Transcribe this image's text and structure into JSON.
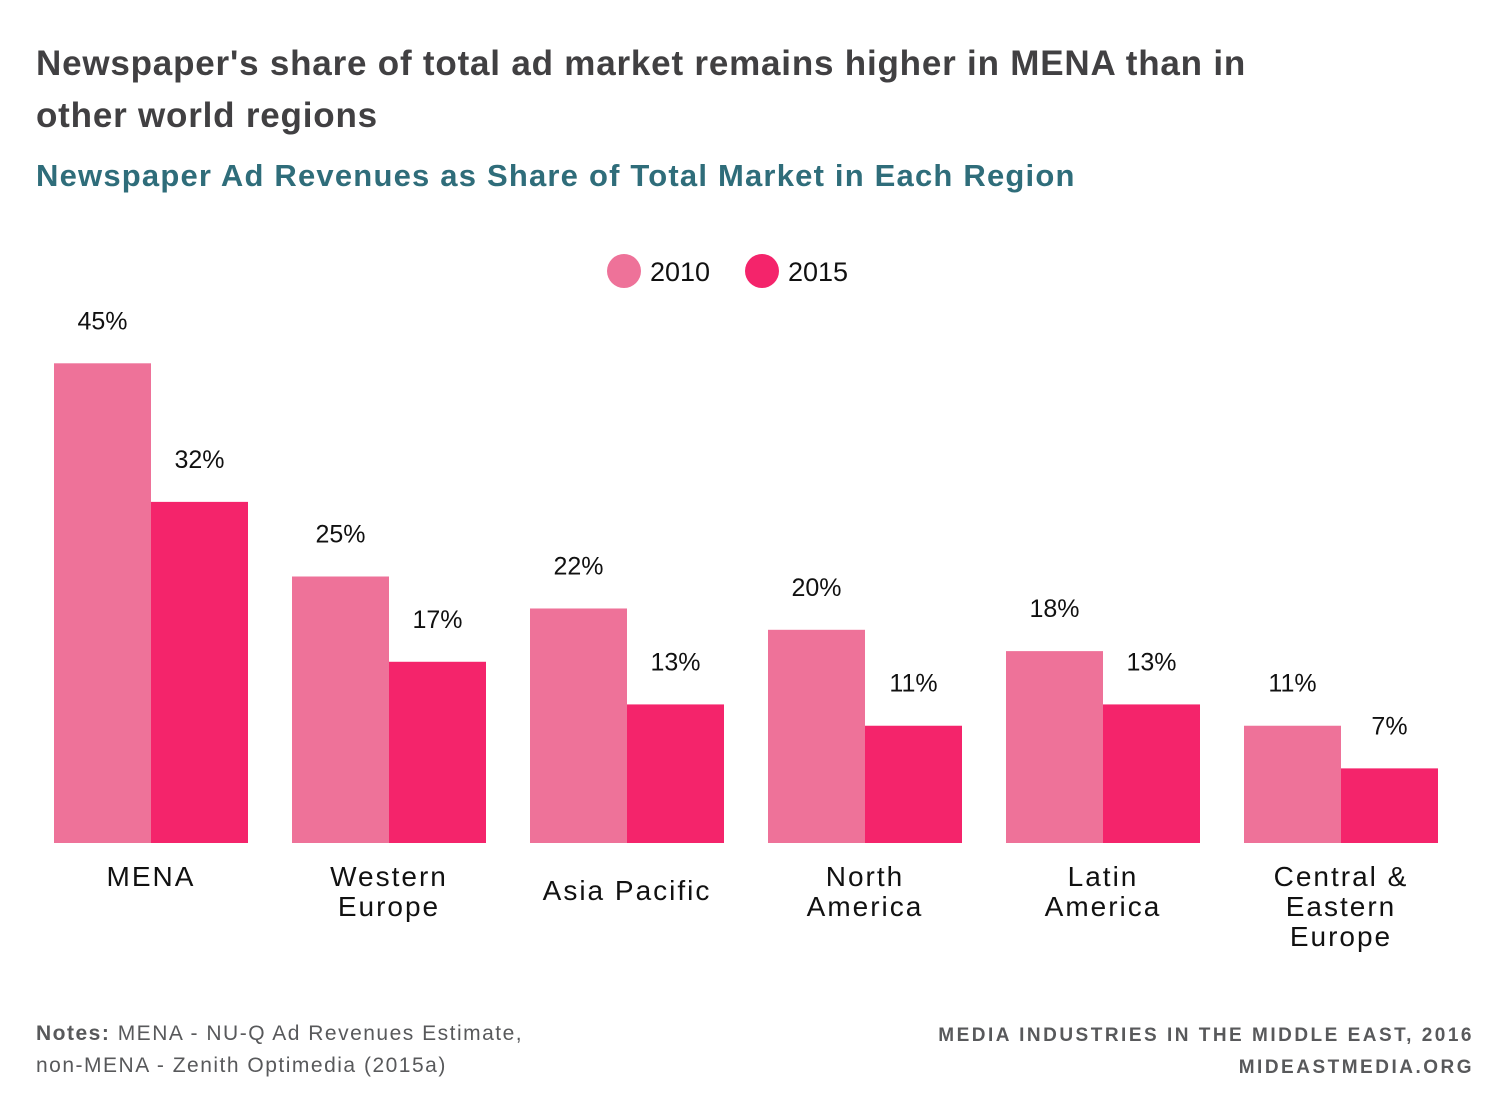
{
  "title": "Newspaper's share of total ad market remains higher in MENA than in other world regions",
  "subtitle": "Newspaper Ad Revenues as Share of Total Market in Each Region",
  "colors": {
    "2010": "#ee7299",
    "2015": "#f4246b",
    "title": "#414042",
    "subtitle": "#2f6d7a"
  },
  "chart_data": {
    "type": "bar",
    "categories": [
      "MENA",
      "Western Europe",
      "Asia Pacific",
      "North America",
      "Latin America",
      "Central & Eastern Europe"
    ],
    "category_lines": [
      [
        "MENA"
      ],
      [
        "Western",
        "Europe"
      ],
      [
        "Asia Pacific"
      ],
      [
        "North",
        "America"
      ],
      [
        "Latin",
        "America"
      ],
      [
        "Central &",
        "Eastern",
        "Europe"
      ]
    ],
    "series": [
      {
        "name": "2010",
        "values": [
          45,
          25,
          22,
          20,
          18,
          11
        ],
        "labels": [
          "45%",
          "25%",
          "22%",
          "20%",
          "18%",
          "11%"
        ]
      },
      {
        "name": "2015",
        "values": [
          32,
          17,
          13,
          11,
          13,
          7
        ],
        "labels": [
          "32%",
          "17%",
          "13%",
          "11%",
          "13%",
          "7%"
        ]
      }
    ],
    "legend": "top-center",
    "grid": false,
    "y_axis_visible": false
  },
  "notes": {
    "label": "Notes:",
    "text1": "MENA - NU-Q Ad Revenues Estimate,",
    "text2": "non-MENA - Zenith Optimedia (2015a)"
  },
  "credit": {
    "line1": "MEDIA INDUSTRIES IN THE MIDDLE EAST, 2016",
    "line2": "MIDEASTMEDIA.ORG"
  }
}
